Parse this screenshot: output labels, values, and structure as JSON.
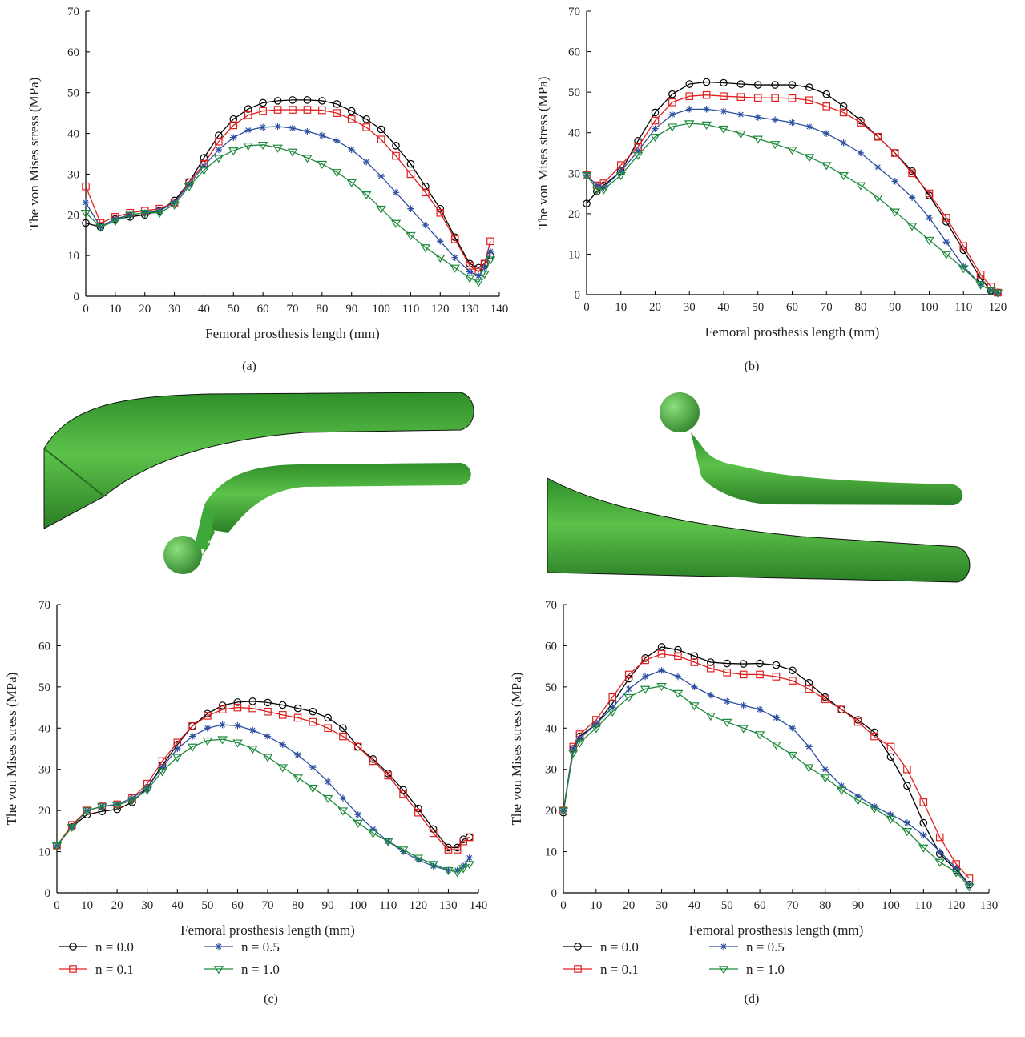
{
  "chart_data": [
    {
      "type": "line",
      "caption": "(a)",
      "x_label": "Femoral prosthesis length (mm)",
      "y_label": "The von Mises stress (MPa)",
      "xlim": [
        0,
        140
      ],
      "ylim": [
        0,
        70
      ],
      "xticks": [
        0,
        10,
        20,
        30,
        40,
        50,
        60,
        70,
        80,
        90,
        100,
        110,
        120,
        130,
        140
      ],
      "yticks": [
        0,
        10,
        20,
        30,
        40,
        50,
        60,
        70
      ],
      "x": [
        0,
        5,
        10,
        15,
        20,
        25,
        30,
        35,
        40,
        45,
        50,
        55,
        60,
        65,
        70,
        75,
        80,
        85,
        90,
        95,
        100,
        105,
        110,
        115,
        120,
        125,
        130,
        133,
        135,
        137
      ],
      "series": [
        {
          "color": "#000000",
          "marker": "circle",
          "values": [
            18,
            17,
            19,
            19.5,
            20,
            21,
            23.5,
            28,
            34,
            39.5,
            43.5,
            46,
            47.5,
            48,
            48.2,
            48.2,
            48,
            47.2,
            45.5,
            43.5,
            41,
            37,
            32.5,
            27,
            21.5,
            14.5,
            8,
            7,
            8,
            10
          ]
        },
        {
          "color": "#e0201f",
          "marker": "square",
          "values": [
            27,
            18,
            19.5,
            20.5,
            21,
            21.5,
            23,
            28,
            32.5,
            38,
            42,
            44.5,
            45.5,
            45.8,
            45.8,
            45.8,
            45.7,
            45,
            43.5,
            41.5,
            38.5,
            34.5,
            30,
            25.5,
            20.5,
            14,
            7.5,
            6,
            8,
            13.5
          ]
        },
        {
          "color": "#2c4fa0",
          "marker": "star",
          "values": [
            23,
            17,
            19,
            20,
            20.5,
            21,
            23,
            27.5,
            32,
            36,
            39,
            40.8,
            41.5,
            41.7,
            41.3,
            40.5,
            39.5,
            38.2,
            36,
            33,
            29.5,
            25.5,
            21.5,
            17.5,
            13.5,
            9.5,
            6,
            5,
            7,
            11
          ]
        },
        {
          "color": "#1e8a3c",
          "marker": "triangle-down",
          "values": [
            20.5,
            17,
            18.5,
            20,
            20.5,
            20.5,
            22.5,
            27,
            31,
            34,
            35.8,
            37,
            37.2,
            36.5,
            35.5,
            34,
            32.5,
            30.5,
            28,
            25,
            21.5,
            18,
            15,
            12,
            9.5,
            7,
            4.5,
            3.5,
            5.5,
            9
          ]
        }
      ]
    },
    {
      "type": "line",
      "caption": "(b)",
      "x_label": "Femoral prosthesis length (mm)",
      "y_label": "The von Mises stress (MPa)",
      "xlim": [
        0,
        120
      ],
      "ylim": [
        0,
        70
      ],
      "xticks": [
        0,
        10,
        20,
        30,
        40,
        50,
        60,
        70,
        80,
        90,
        100,
        110,
        120
      ],
      "yticks": [
        0,
        10,
        20,
        30,
        40,
        50,
        60,
        70
      ],
      "x": [
        0,
        3,
        5,
        10,
        15,
        20,
        25,
        30,
        35,
        40,
        45,
        50,
        55,
        60,
        65,
        70,
        75,
        80,
        85,
        90,
        95,
        100,
        105,
        110,
        115,
        118,
        120
      ],
      "series": [
        {
          "color": "#000000",
          "marker": "circle",
          "values": [
            22.5,
            25.5,
            27,
            30.5,
            38,
            45,
            49.5,
            52,
            52.5,
            52.3,
            52,
            51.8,
            51.8,
            51.8,
            51.2,
            49.5,
            46.5,
            43,
            39,
            35,
            30.5,
            24.5,
            18,
            11,
            4,
            1,
            0.5
          ]
        },
        {
          "color": "#e0201f",
          "marker": "square",
          "values": [
            29.5,
            27,
            27.5,
            32,
            36.5,
            43,
            47.5,
            49,
            49.3,
            49,
            48.8,
            48.6,
            48.6,
            48.5,
            48,
            46.5,
            45,
            42.5,
            39,
            35,
            30,
            25,
            19,
            12,
            5,
            2,
            0.5
          ]
        },
        {
          "color": "#2c4fa0",
          "marker": "star",
          "values": [
            29.5,
            27,
            26.5,
            30.5,
            35.5,
            41,
            44.5,
            45.8,
            45.8,
            45.3,
            44.5,
            43.8,
            43.2,
            42.5,
            41.5,
            39.8,
            37.5,
            35,
            31.5,
            28,
            24,
            19,
            13,
            7,
            2.5,
            1,
            0.5
          ]
        },
        {
          "color": "#1e8a3c",
          "marker": "triangle-down",
          "values": [
            29.5,
            26,
            26,
            29.5,
            34.5,
            39,
            41.5,
            42.3,
            42,
            41,
            39.8,
            38.5,
            37.2,
            35.8,
            34,
            32,
            29.5,
            27,
            24,
            20.5,
            17,
            13.5,
            10,
            6.5,
            2.5,
            1,
            0.5
          ]
        }
      ]
    },
    {
      "type": "line",
      "caption": "(c)",
      "x_label": "Femoral prosthesis length (mm)",
      "y_label": "The von Mises stress (MPa)",
      "xlim": [
        0,
        140
      ],
      "ylim": [
        0,
        70
      ],
      "xticks": [
        0,
        10,
        20,
        30,
        40,
        50,
        60,
        70,
        80,
        90,
        100,
        110,
        120,
        130,
        140
      ],
      "yticks": [
        0,
        10,
        20,
        30,
        40,
        50,
        60,
        70
      ],
      "x": [
        0,
        5,
        10,
        15,
        20,
        25,
        30,
        35,
        40,
        45,
        50,
        55,
        60,
        65,
        70,
        75,
        80,
        85,
        90,
        95,
        100,
        105,
        110,
        115,
        120,
        125,
        130,
        133,
        135,
        137
      ],
      "series": [
        {
          "name": "n = 0.0",
          "color": "#000000",
          "marker": "circle",
          "values": [
            11.5,
            16,
            19,
            19.8,
            20.3,
            22,
            25.5,
            31,
            36,
            40.5,
            43.5,
            45.5,
            46.3,
            46.5,
            46.2,
            45.6,
            44.8,
            44,
            42.5,
            40,
            35.5,
            32.5,
            29,
            25,
            20.5,
            15.5,
            11,
            11,
            13,
            13.5
          ]
        },
        {
          "name": "n = 0.1",
          "color": "#e0201f",
          "marker": "square",
          "values": [
            11.5,
            16.5,
            20,
            21,
            21.5,
            23,
            26.5,
            32,
            36.5,
            40.5,
            43,
            44.5,
            45,
            44.8,
            44,
            43.2,
            42.5,
            41.5,
            40,
            38,
            35.5,
            32,
            28.5,
            24,
            19.5,
            14.5,
            10.5,
            10.5,
            12.5,
            13.5
          ]
        },
        {
          "name": "n = 0.5",
          "color": "#2c4fa0",
          "marker": "star",
          "values": [
            11.5,
            16,
            20,
            21,
            21.5,
            23,
            25.5,
            30.5,
            35,
            38,
            40,
            40.8,
            40.6,
            39.5,
            38,
            36,
            33.5,
            30.5,
            27,
            23,
            19,
            15.5,
            12.5,
            10,
            8,
            6.5,
            5.5,
            5.5,
            6.5,
            8.5
          ]
        },
        {
          "name": "n = 1.0",
          "color": "#1e8a3c",
          "marker": "triangle-down",
          "values": [
            11.5,
            16,
            20,
            21,
            21.3,
            22.5,
            25,
            29.5,
            33,
            35.5,
            37,
            37.3,
            36.5,
            35,
            33,
            30.5,
            28,
            25.5,
            23,
            20,
            17,
            14.5,
            12.5,
            10.5,
            8.5,
            7,
            5.5,
            5,
            6,
            7
          ]
        }
      ]
    },
    {
      "type": "line",
      "caption": "(d)",
      "x_label": "Femoral prosthesis length (mm)",
      "y_label": "The von Mises stress (MPa)",
      "xlim": [
        0,
        130
      ],
      "ylim": [
        0,
        70
      ],
      "xticks": [
        0,
        10,
        20,
        30,
        40,
        50,
        60,
        70,
        80,
        90,
        100,
        110,
        120,
        130
      ],
      "yticks": [
        0,
        10,
        20,
        30,
        40,
        50,
        60,
        70
      ],
      "x": [
        0,
        3,
        5,
        10,
        15,
        20,
        25,
        30,
        35,
        40,
        45,
        50,
        55,
        60,
        65,
        70,
        75,
        80,
        85,
        90,
        95,
        100,
        105,
        110,
        115,
        120,
        124
      ],
      "series": [
        {
          "name": "n = 0.0",
          "color": "#000000",
          "marker": "circle",
          "values": [
            19.5,
            35,
            38,
            41,
            46,
            52,
            57,
            59.7,
            59,
            57.5,
            56,
            55.7,
            55.6,
            55.7,
            55.3,
            54,
            51,
            47.5,
            44.5,
            42,
            39,
            33,
            26,
            17,
            9.5,
            5.5,
            2
          ]
        },
        {
          "name": "n = 0.1",
          "color": "#e0201f",
          "marker": "square",
          "values": [
            20,
            35.5,
            38.5,
            42,
            47.5,
            53,
            56.5,
            58,
            57.5,
            56,
            54.5,
            53.5,
            53,
            53,
            52.5,
            51.5,
            49.5,
            47,
            44.5,
            41.5,
            38,
            35.5,
            30,
            22,
            13.5,
            7,
            3.5
          ]
        },
        {
          "name": "n = 0.5",
          "color": "#2c4fa0",
          "marker": "star",
          "values": [
            20,
            35,
            37.5,
            41,
            45,
            49.5,
            52.5,
            54,
            52.5,
            50,
            48,
            46.5,
            45.5,
            44.5,
            42.5,
            40,
            35.5,
            30,
            26,
            23.5,
            21,
            19,
            17,
            14,
            10,
            6,
            2
          ]
        },
        {
          "name": "n = 1.0",
          "color": "#1e8a3c",
          "marker": "triangle-down",
          "values": [
            20,
            34,
            36.5,
            40,
            44,
            47.5,
            49.5,
            50.2,
            48.5,
            45.5,
            43,
            41.5,
            40,
            38.5,
            36,
            33.5,
            30.5,
            28,
            25,
            22.5,
            20.5,
            18,
            15,
            11,
            7.5,
            5,
            1.5
          ]
        }
      ]
    }
  ]
}
